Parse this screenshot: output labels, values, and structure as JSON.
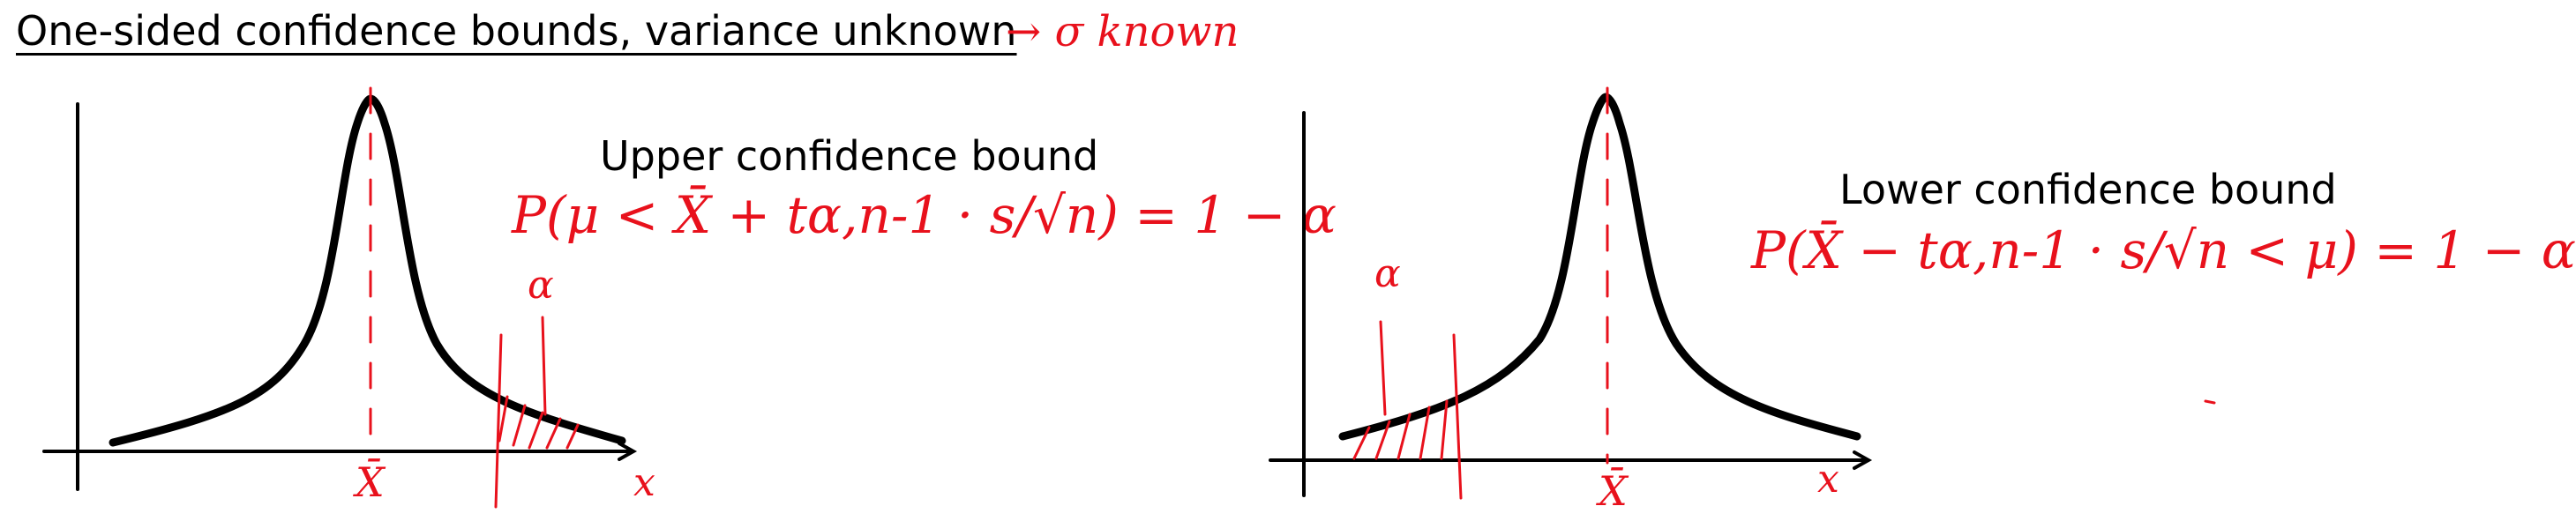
{
  "header": {
    "title": "One-sided confidence bounds, variance unknown",
    "note": "→ σ known"
  },
  "panels": [
    {
      "label": "Upper confidence bound",
      "formula": "P(μ < X̄ + tα,n-1 · s/√n) = 1 − α",
      "alpha_label": "α",
      "mean_label": "X̄",
      "axis_label": "x"
    },
    {
      "label": "Lower confidence bound",
      "formula": "P(X̄ − tα,n-1 · s/√n < μ) = 1 − α",
      "alpha_label": "α",
      "mean_label": "X̄",
      "axis_label": "x"
    }
  ],
  "colors": {
    "ink": "#000000",
    "annotation": "#e8111c"
  }
}
